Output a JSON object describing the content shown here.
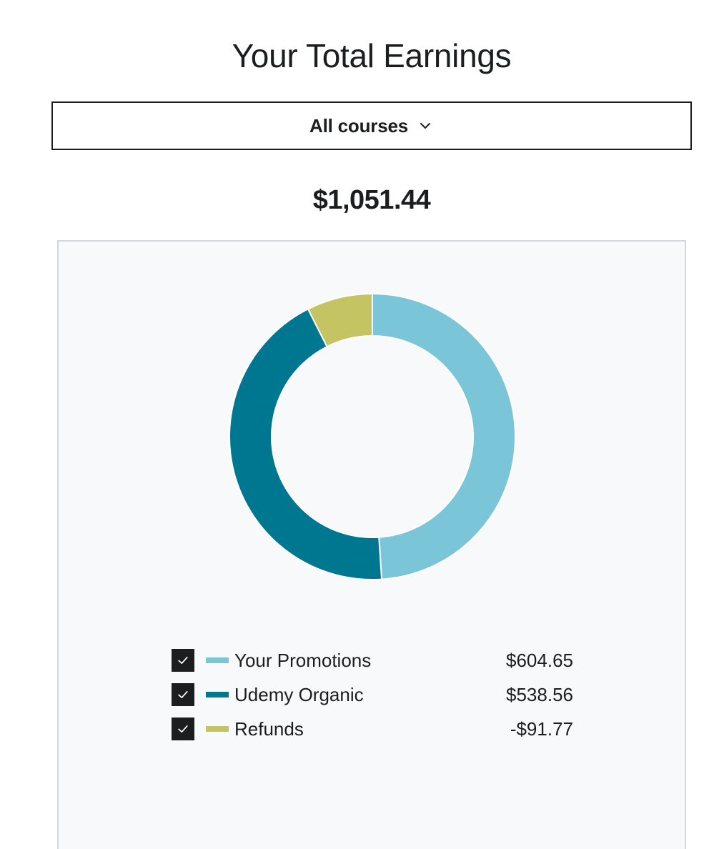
{
  "header": {
    "title": "Your Total Earnings"
  },
  "filter": {
    "selected": "All courses",
    "icon": "chevron-down-icon"
  },
  "total": "$1,051.44",
  "chart_data": {
    "type": "pie",
    "style": "donut",
    "series": [
      {
        "name": "Your Promotions",
        "value": 604.65,
        "label": "$604.65",
        "color": "#7ac5d8"
      },
      {
        "name": "Udemy Organic",
        "value": 538.56,
        "label": "$538.56",
        "color": "#007791"
      },
      {
        "name": "Refunds",
        "value": -91.77,
        "label": "-$91.77",
        "color": "#c4c462"
      }
    ]
  },
  "legend": {
    "items": [
      {
        "checked": true,
        "label": "Your Promotions",
        "value": "$604.65",
        "color": "#7ac5d8"
      },
      {
        "checked": true,
        "label": "Udemy Organic",
        "value": "$538.56",
        "color": "#007791"
      },
      {
        "checked": true,
        "label": "Refunds",
        "value": "-$91.77",
        "color": "#c4c462"
      }
    ]
  }
}
